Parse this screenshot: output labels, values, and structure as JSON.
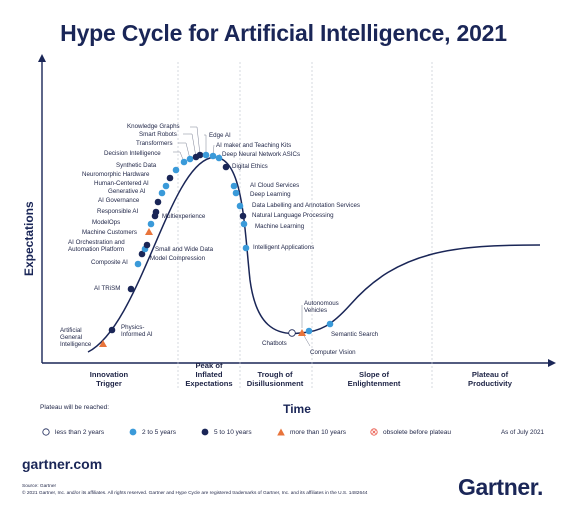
{
  "title": "Hype Cycle for Artificial Intelligence, 2021",
  "y_axis_label": "Expectations",
  "x_axis_label": "Time",
  "phases": [
    {
      "line1": "Innovation",
      "line2": "Trigger",
      "line3": ""
    },
    {
      "line1": "Peak of",
      "line2": "Inflated",
      "line3": "Expectations"
    },
    {
      "line1": "Trough of",
      "line2": "Disillusionment",
      "line3": ""
    },
    {
      "line1": "Slope of",
      "line2": "Enlightenment",
      "line3": ""
    },
    {
      "line1": "Plateau of",
      "line2": "Productivity",
      "line3": ""
    }
  ],
  "colors": {
    "lt2": "#ffffff",
    "y2to5": "#3a9ad9",
    "y5to10": "#1a2657",
    "gt10": "#e8743b",
    "obsolete": "#e84c3d"
  },
  "points": [
    {
      "label": "Artificial General Intelligence",
      "cat": "gt10"
    },
    {
      "label": "Physics-Informed AI",
      "cat": "y5to10"
    },
    {
      "label": "AI TRiSM",
      "cat": "y5to10"
    },
    {
      "label": "Composite AI",
      "cat": "y2to5"
    },
    {
      "label": "Model Compression",
      "cat": "y5to10"
    },
    {
      "label": "AI Orchestration and Automation Platform",
      "cat": "y2to5"
    },
    {
      "label": "Small and Wide Data",
      "cat": "y5to10"
    },
    {
      "label": "Machine Customers",
      "cat": "gt10"
    },
    {
      "label": "ModelOps",
      "cat": "y2to5"
    },
    {
      "label": "Multiexperience",
      "cat": "y5to10"
    },
    {
      "label": "Responsible AI",
      "cat": "y5to10"
    },
    {
      "label": "AI Governance",
      "cat": "y5to10"
    },
    {
      "label": "Generative AI",
      "cat": "y2to5"
    },
    {
      "label": "Human-Centered AI",
      "cat": "y2to5"
    },
    {
      "label": "Neuromorphic Hardware",
      "cat": "y5to10"
    },
    {
      "label": "Synthetic Data",
      "cat": "y2to5"
    },
    {
      "label": "Decision Intelligence",
      "cat": "y2to5"
    },
    {
      "label": "Transformers",
      "cat": "y2to5"
    },
    {
      "label": "Smart Robots",
      "cat": "y5to10"
    },
    {
      "label": "Knowledge Graphs",
      "cat": "y5to10"
    },
    {
      "label": "Edge AI",
      "cat": "y2to5"
    },
    {
      "label": "AI maker and Teaching Kits",
      "cat": "y2to5"
    },
    {
      "label": "Deep Neural Network ASICs",
      "cat": "y2to5"
    },
    {
      "label": "Digital Ethics",
      "cat": "y5to10"
    },
    {
      "label": "AI Cloud Services",
      "cat": "y2to5"
    },
    {
      "label": "Deep Learning",
      "cat": "y2to5"
    },
    {
      "label": "Data Labelling and Annotation Services",
      "cat": "y2to5"
    },
    {
      "label": "Natural Language Processing",
      "cat": "y5to10"
    },
    {
      "label": "Machine Learning",
      "cat": "y2to5"
    },
    {
      "label": "Intelligent Applications",
      "cat": "y2to5"
    },
    {
      "label": "Chatbots",
      "cat": "lt2"
    },
    {
      "label": "Autonomous Vehicles",
      "cat": "gt10"
    },
    {
      "label": "Computer Vision",
      "cat": "y2to5"
    },
    {
      "label": "Semantic Search",
      "cat": "y2to5"
    }
  ],
  "legend": {
    "heading": "Plateau will be reached:",
    "items": [
      {
        "label": "less than 2 years",
        "cat": "lt2"
      },
      {
        "label": "2 to 5 years",
        "cat": "y2to5"
      },
      {
        "label": "5 to 10 years",
        "cat": "y5to10"
      },
      {
        "label": "more than 10 years",
        "cat": "gt10"
      },
      {
        "label": "obsolete before plateau",
        "cat": "obsolete"
      }
    ],
    "as_of": "As of July 2021"
  },
  "footer": {
    "site": "gartner.com",
    "source_line1": "Source: Gartner",
    "source_line2": "© 2021 Gartner, Inc. and/or its affiliates. All rights reserved. Gartner and Hype Cycle are registered trademarks of Gartner, Inc. and its affiliates in the U.S. 1482644",
    "brand": "Gartner",
    "brand_dot": "."
  }
}
